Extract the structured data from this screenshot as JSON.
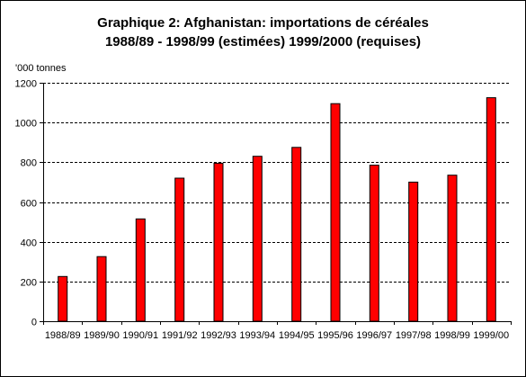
{
  "chart_data": {
    "type": "bar",
    "title": "Graphique 2: Afghanistan: importations de céréales",
    "subtitle": "1988/89 - 1998/99 (estimées) 1999/2000 (requises)",
    "ylabel": "'000 tonnes",
    "xlabel": "",
    "categories": [
      "1988/89",
      "1989/90",
      "1990/91",
      "1991/92",
      "1992/93",
      "1993/94",
      "1994/95",
      "1995/96",
      "1996/97",
      "1997/98",
      "1998/99",
      "1999/00"
    ],
    "values": [
      225,
      325,
      515,
      720,
      795,
      830,
      875,
      1095,
      785,
      700,
      735,
      1125
    ],
    "ylim": [
      0,
      1200
    ],
    "yticks": [
      0,
      200,
      400,
      600,
      800,
      1000,
      1200
    ],
    "grid": "horizontal dashed",
    "legend": "none",
    "colors": {
      "bar_fill": "#ff0000",
      "bar_stroke": "#000000",
      "grid": "#000000",
      "axis": "#000000"
    }
  }
}
